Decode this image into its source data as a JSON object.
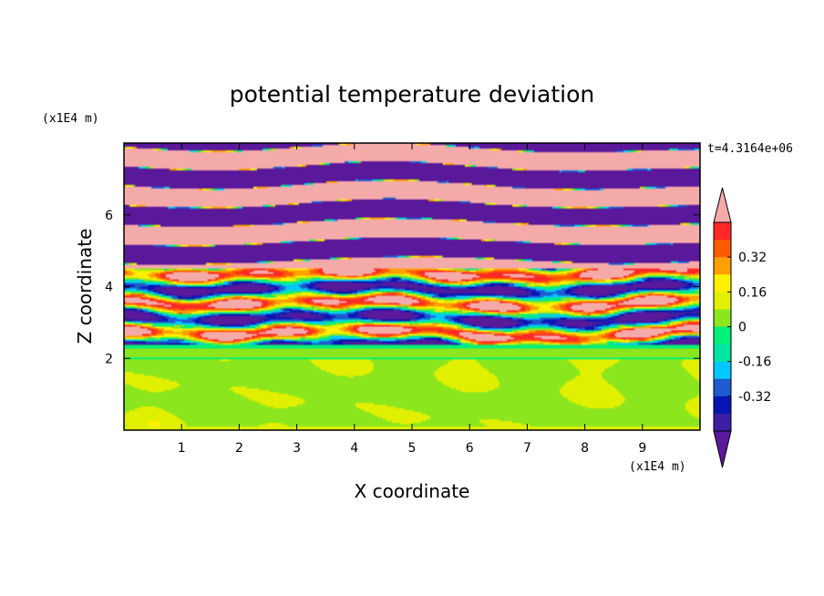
{
  "chart_data": {
    "type": "heatmap",
    "title": "potential temperature deviation",
    "xlabel": "X coordinate",
    "ylabel": "Z coordinate",
    "x_unit": "(x1E4 m)",
    "y_unit": "(x1E4 m)",
    "time_label": "t=4.3164e+06",
    "xlim": [
      0,
      10
    ],
    "ylim": [
      0,
      8
    ],
    "x_ticks": [
      "1",
      "2",
      "3",
      "4",
      "5",
      "6",
      "7",
      "8",
      "9"
    ],
    "y_ticks": [
      "2",
      "4",
      "6"
    ],
    "grid": false,
    "legend_position": "right",
    "colorbar": {
      "levels": [
        -0.48,
        -0.4,
        -0.32,
        -0.24,
        -0.16,
        -0.08,
        0,
        0.08,
        0.16,
        0.24,
        0.32,
        0.4,
        0.48
      ],
      "colors": [
        "#5a189a",
        "#3c1ea5",
        "#0a14b4",
        "#1e5ad2",
        "#00c8ff",
        "#00e6a0",
        "#00f078",
        "#8ce61e",
        "#e1f000",
        "#fff000",
        "#ffa000",
        "#ff5a00",
        "#ff2828",
        "#f5aaaa"
      ],
      "tick_labels": [
        "0.32",
        "0.16",
        "0",
        "-0.16",
        "-0.32"
      ],
      "tick_values": [
        0.32,
        0.16,
        0,
        -0.16,
        -0.32
      ]
    },
    "regions": [
      {
        "z_range": [
          0,
          2.0
        ],
        "description_values": "near-zero deviation, mostly green (0 to 0.08) with lime patches"
      },
      {
        "z_range": [
          2.0,
          2.4
        ],
        "description_values": "thin bands around -0.08 to 0"
      },
      {
        "z_range": [
          2.4,
          4.5
        ],
        "description_values": "mixed layers spanning -0.48 to 0.48"
      },
      {
        "z_range": [
          4.5,
          8.0
        ],
        "description_values": "alternating horizontal layers of about +0.48 and -0.48"
      }
    ]
  }
}
